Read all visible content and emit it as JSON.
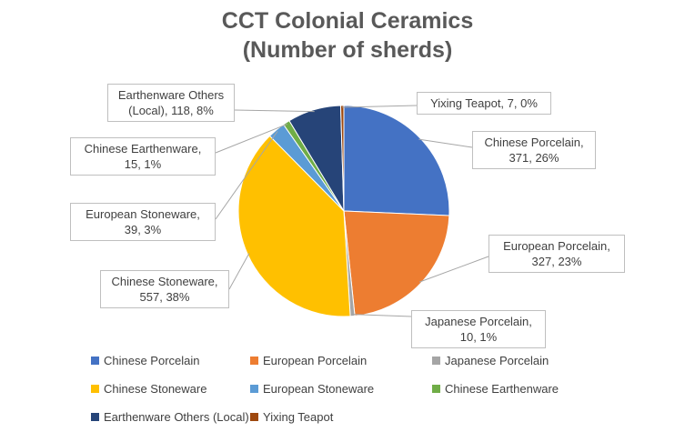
{
  "chart_data": {
    "type": "pie",
    "title_line1": "CCT Colonial Ceramics",
    "title_line2": "(Number of sherds)",
    "legend_position": "bottom",
    "slices": [
      {
        "label": "Chinese Porcelain",
        "value": 371,
        "percent": "26%",
        "color": "#4472C4",
        "callout_lines": [
          "Chinese Porcelain,",
          "371, 26%"
        ]
      },
      {
        "label": "European Porcelain",
        "value": 327,
        "percent": "23%",
        "color": "#ED7D31",
        "callout_lines": [
          "European Porcelain,",
          "327, 23%"
        ]
      },
      {
        "label": "Japanese Porcelain",
        "value": 10,
        "percent": "1%",
        "color": "#A5A5A5",
        "callout_lines": [
          "Japanese Porcelain,",
          "10, 1%"
        ]
      },
      {
        "label": "Chinese Stoneware",
        "value": 557,
        "percent": "38%",
        "color": "#FFC000",
        "callout_lines": [
          "Chinese Stoneware,",
          "557, 38%"
        ]
      },
      {
        "label": "European Stoneware",
        "value": 39,
        "percent": "3%",
        "color": "#5B9BD5",
        "callout_lines": [
          "European Stoneware,",
          "39, 3%"
        ]
      },
      {
        "label": "Chinese Earthenware",
        "value": 15,
        "percent": "1%",
        "color": "#70AD47",
        "callout_lines": [
          "Chinese Earthenware,",
          "15, 1%"
        ]
      },
      {
        "label": "Earthenware Others (Local)",
        "value": 118,
        "percent": "8%",
        "color": "#264478",
        "callout_lines": [
          "Earthenware Others",
          "(Local), 118, 8%"
        ]
      },
      {
        "label": "Yixing Teapot",
        "value": 7,
        "percent": "0%",
        "color": "#9E480E",
        "callout_lines": [
          "Yixing Teapot, 7, 0%"
        ]
      }
    ]
  }
}
